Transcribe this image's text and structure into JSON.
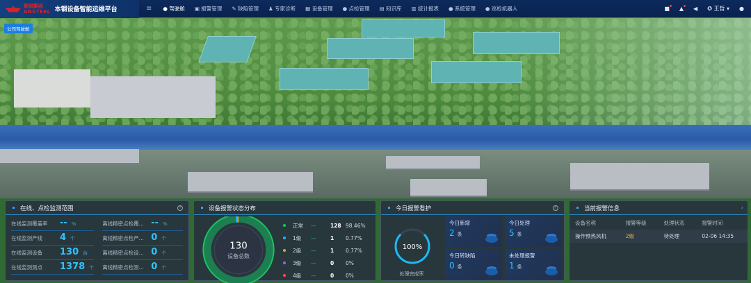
{
  "header": {
    "logo_cn": "鞍钢集团",
    "logo_en": "ANSTEEL",
    "title": "本钢设备智能运维平台",
    "menu_icon": "hamburger-icon",
    "nav": [
      {
        "label": "● 驾驶舱",
        "active": true
      },
      {
        "label": "▣ 报警管理"
      },
      {
        "label": "✎ 缺陷管理"
      },
      {
        "label": "♟ 专家诊断"
      },
      {
        "label": "▦ 设备管理"
      },
      {
        "label": "● 点检管理"
      },
      {
        "label": "▤ 知识库"
      },
      {
        "label": "▥ 统计报表"
      },
      {
        "label": "● 系统管理"
      },
      {
        "label": "● 巡检机器人"
      }
    ],
    "user": "王哲"
  },
  "badge": "公司驾驶舱",
  "monitor": {
    "title": "在线、点检监测范围",
    "items": [
      {
        "label": "在线监测覆盖率",
        "value": "--",
        "unit": "%"
      },
      {
        "label": "离线精密点检覆...",
        "value": "--",
        "unit": "%"
      },
      {
        "label": "在线监测产线",
        "value": "4",
        "unit": "个"
      },
      {
        "label": "离线精密点检产...",
        "value": "0",
        "unit": "个"
      },
      {
        "label": "在线监测设备",
        "value": "130",
        "unit": "台"
      },
      {
        "label": "离线精密点检设...",
        "value": "0",
        "unit": "个"
      },
      {
        "label": "在线监测测点",
        "value": "1378",
        "unit": "个"
      },
      {
        "label": "离线精密点检测...",
        "value": "0",
        "unit": "个"
      }
    ]
  },
  "alarm_dist": {
    "title": "设备报警状态分布",
    "total": "130",
    "total_label": "设备总数",
    "levels": [
      {
        "name": "正常",
        "count": 128,
        "pct": "98.46%",
        "color": "#19c463"
      },
      {
        "name": "1级",
        "count": 1,
        "pct": "0.77%",
        "color": "#2ab0ff"
      },
      {
        "name": "2级",
        "count": 1,
        "pct": "0.77%",
        "color": "#f0a020"
      },
      {
        "name": "3级",
        "count": 0,
        "pct": "0%",
        "color": "#a05cff"
      },
      {
        "name": "4级",
        "count": 0,
        "pct": "0%",
        "color": "#ff4a5a"
      }
    ]
  },
  "today": {
    "title": "今日报警看护",
    "rate": "100%",
    "rate_value": 100,
    "rate_label": "处理完成率",
    "cards": [
      {
        "label": "今日新增",
        "value": "2",
        "unit": "条"
      },
      {
        "label": "今日处理",
        "value": "5",
        "unit": "条"
      },
      {
        "label": "今日转缺陷",
        "value": "0",
        "unit": "条"
      },
      {
        "label": "未处理报警",
        "value": "1",
        "unit": "条"
      }
    ]
  },
  "current": {
    "title": "当前报警信息",
    "columns": [
      "设备名称",
      "报警等级",
      "处理状态",
      "报警时间"
    ],
    "rows": [
      [
        "操作预热风机",
        "2级",
        "待处理",
        "02-06 14:35"
      ]
    ],
    "level_color": "#f0b020"
  }
}
